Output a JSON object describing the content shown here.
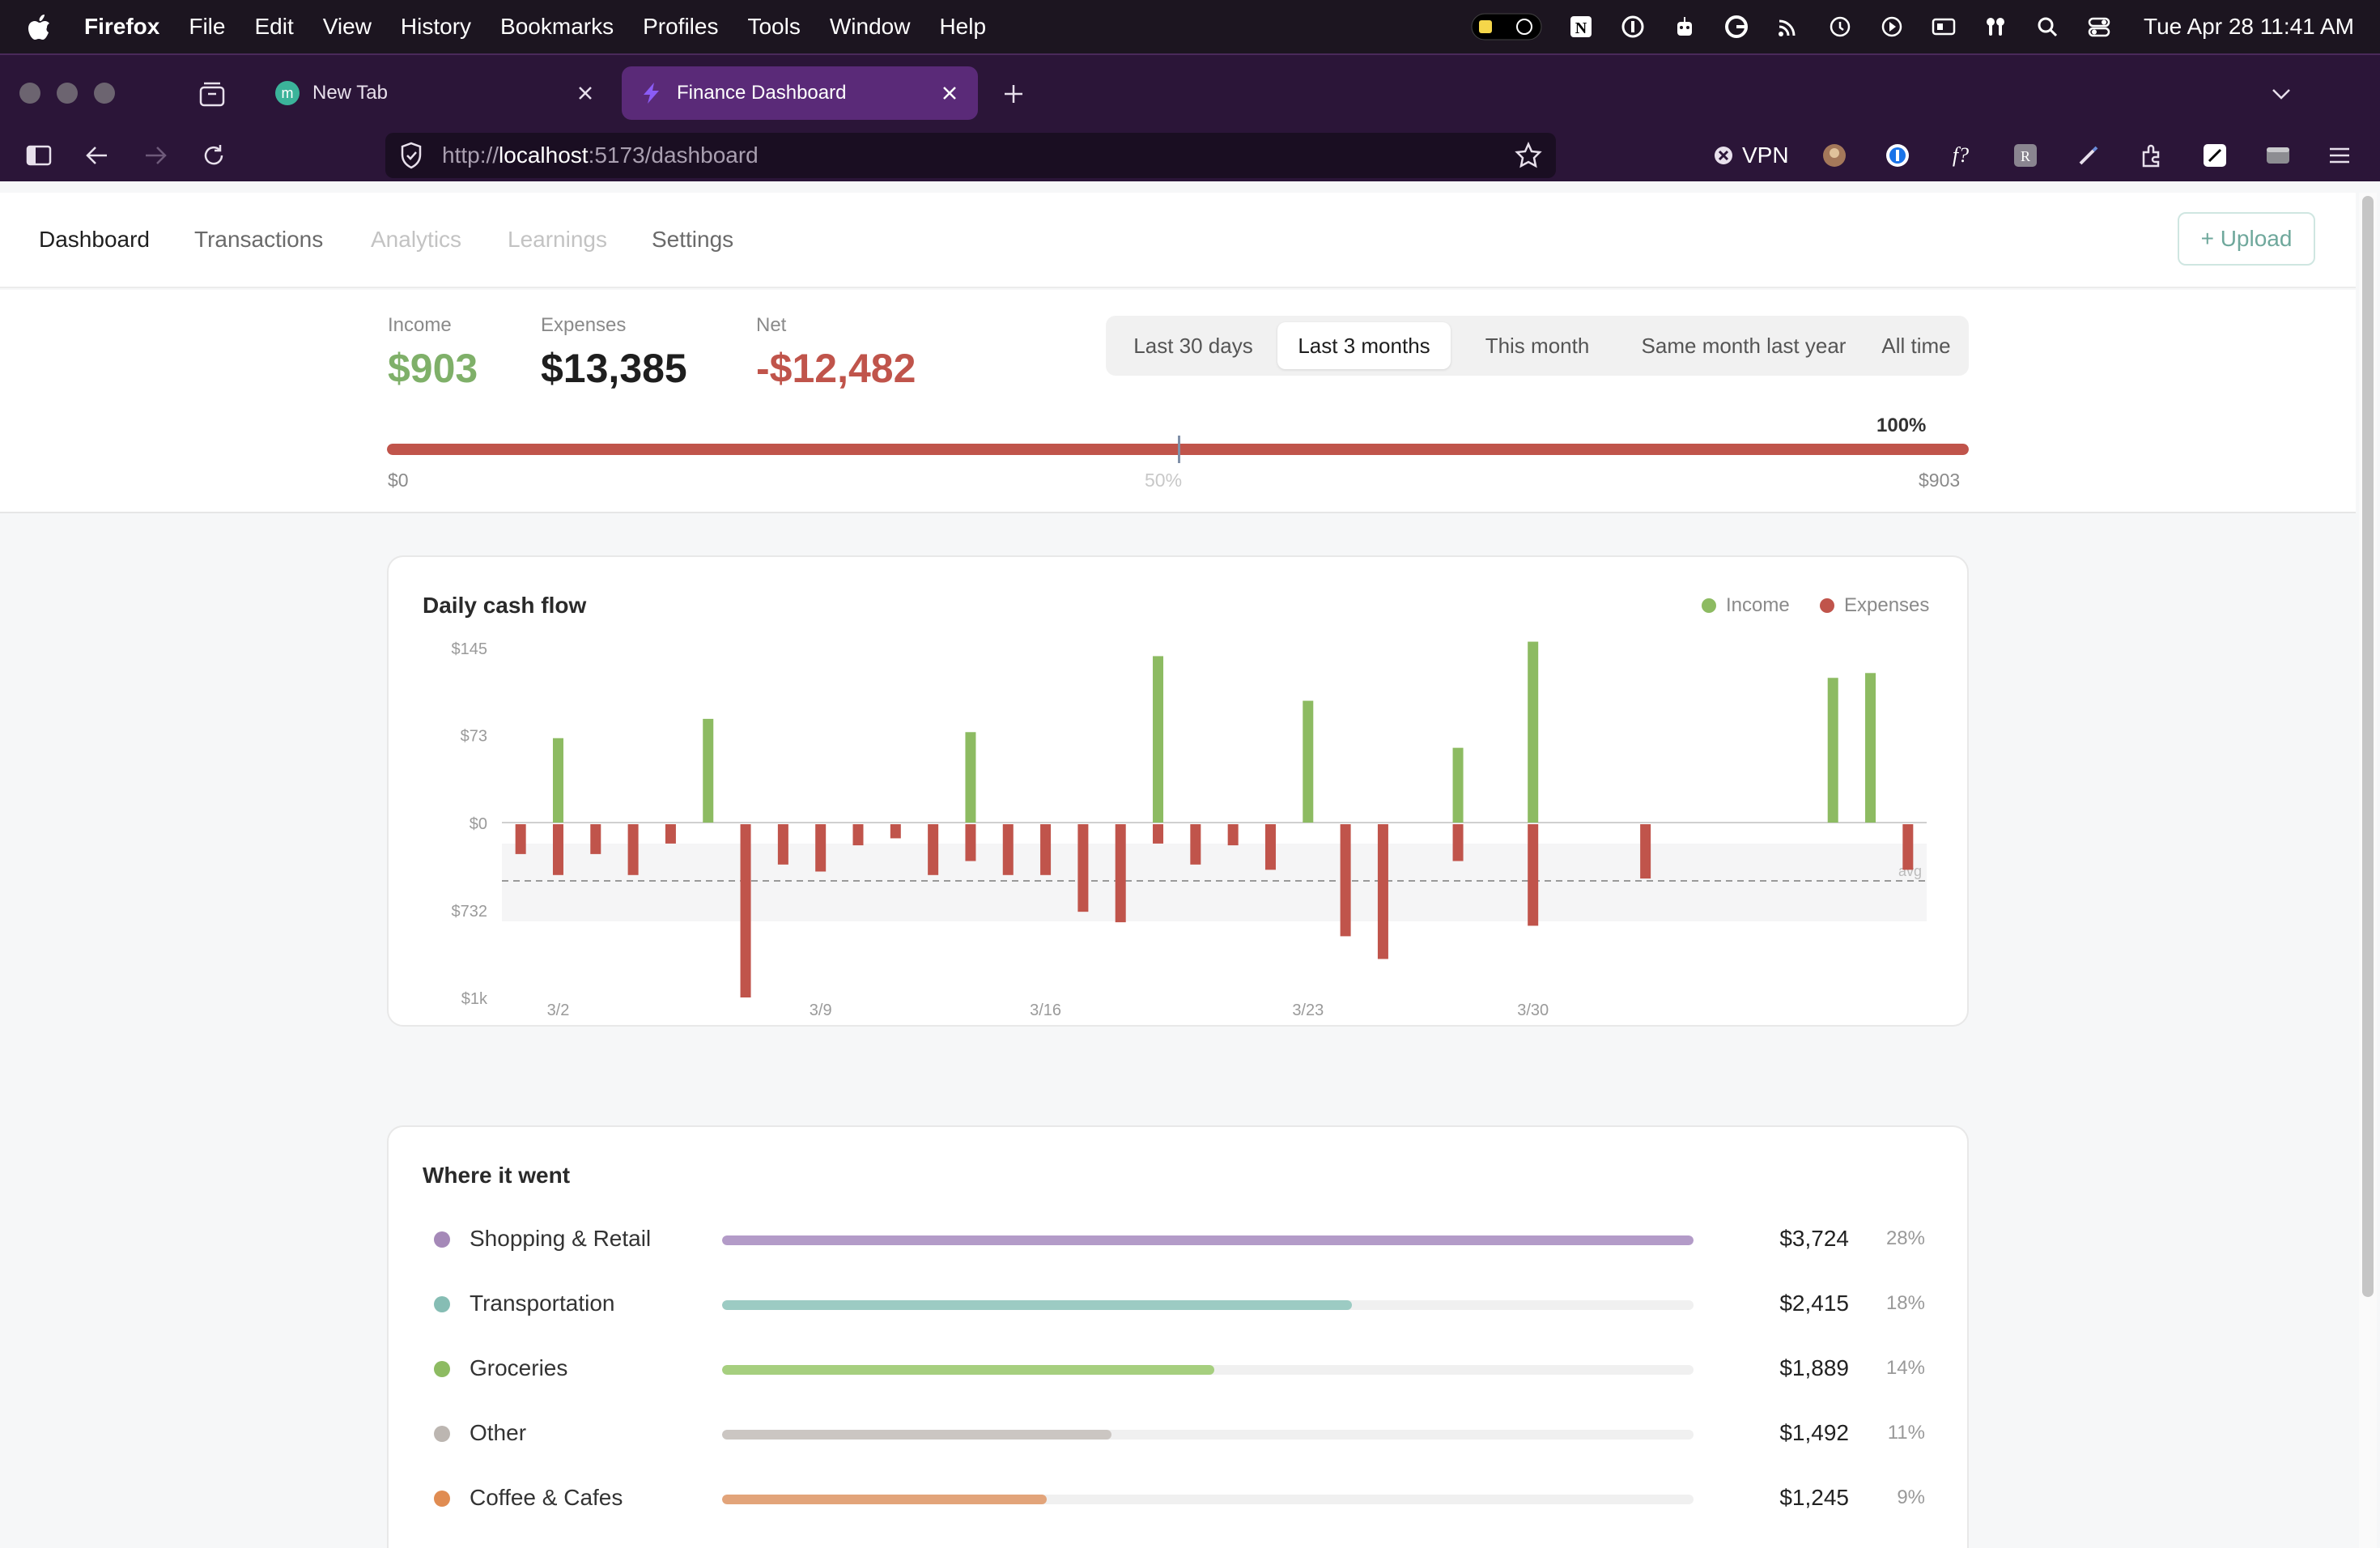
{
  "menubar": {
    "app_name": "Firefox",
    "items": [
      "File",
      "Edit",
      "View",
      "History",
      "Bookmarks",
      "Profiles",
      "Tools",
      "Window",
      "Help"
    ],
    "clock": "Tue Apr 28  11:41 AM"
  },
  "browser": {
    "tabs": [
      {
        "title": "New Tab",
        "favicon_letter": "m",
        "favicon_color": "#3bb39a"
      },
      {
        "title": "Finance Dashboard",
        "favicon_color": "#8b5cf6"
      }
    ],
    "url": {
      "scheme": "http://",
      "host": "localhost",
      "rest": ":5173/dashboard"
    },
    "vpn_label": "VPN"
  },
  "nav": {
    "links": [
      "Dashboard",
      "Transactions",
      "Analytics",
      "Learnings",
      "Settings"
    ],
    "upload_label": "+ Upload"
  },
  "summary": {
    "income": {
      "label": "Income",
      "value": "$903",
      "color": "#7fb069"
    },
    "expenses": {
      "label": "Expenses",
      "value": "$13,385",
      "color": "#1e1e1e"
    },
    "net": {
      "label": "Net",
      "value": "-$12,482",
      "color": "#c0544b"
    },
    "ranges": [
      "Last 30 days",
      "Last 3 months",
      "This month",
      "Same month last year",
      "All time"
    ],
    "selected_range": "Last 3 months",
    "progress": {
      "percent_label": "100%",
      "fill_fraction": 1.0,
      "min_label": "$0",
      "mid_label": "50%",
      "max_label": "$903"
    }
  },
  "chart_data": {
    "type": "bar",
    "title": "Daily cash flow",
    "legend": [
      {
        "name": "Income",
        "color": "#8dbb62"
      },
      {
        "name": "Expenses",
        "color": "#c0544b"
      }
    ],
    "y_tick_labels": [
      "$145",
      "$73",
      "$0",
      "$732",
      "$1k"
    ],
    "x_tick_labels": [
      "3/2",
      "3/9",
      "3/16",
      "3/23",
      "3/30"
    ],
    "avg_label": "avg",
    "series": [
      {
        "name": "Income",
        "values": [
          0,
          70,
          0,
          0,
          0,
          86,
          0,
          0,
          0,
          0,
          0,
          0,
          75,
          0,
          0,
          0,
          0,
          138,
          0,
          0,
          0,
          101,
          0,
          0,
          0,
          62,
          0,
          150,
          0,
          0,
          0,
          0,
          0,
          0,
          0,
          120,
          124,
          0
        ]
      },
      {
        "name": "Expenses",
        "values": [
          180,
          300,
          180,
          300,
          120,
          0,
          1000,
          240,
          280,
          130,
          90,
          300,
          220,
          300,
          300,
          510,
          570,
          120,
          240,
          130,
          270,
          0,
          650,
          780,
          0,
          220,
          0,
          590,
          0,
          0,
          320,
          0,
          0,
          0,
          0,
          0,
          0,
          270
        ]
      }
    ]
  },
  "where": {
    "title": "Where it went",
    "categories": [
      {
        "name": "Shopping & Retail",
        "amount": "$3,724",
        "pct": "28%",
        "fill_fraction": 1.0,
        "color": "#b39bc8",
        "dot_color": "#a589b8"
      },
      {
        "name": "Transportation",
        "amount": "$2,415",
        "pct": "18%",
        "fill_fraction": 0.648,
        "color": "#9ccbc3",
        "dot_color": "#86bdb4"
      },
      {
        "name": "Groceries",
        "amount": "$1,889",
        "pct": "14%",
        "fill_fraction": 0.507,
        "color": "#a6cf7f",
        "dot_color": "#8dbb62"
      },
      {
        "name": "Other",
        "amount": "$1,492",
        "pct": "11%",
        "fill_fraction": 0.401,
        "color": "#cbc6c2",
        "dot_color": "#bcb6b1"
      },
      {
        "name": "Coffee & Cafes",
        "amount": "$1,245",
        "pct": "9%",
        "fill_fraction": 0.334,
        "color": "#e2a47a",
        "dot_color": "#e08c52"
      }
    ]
  }
}
